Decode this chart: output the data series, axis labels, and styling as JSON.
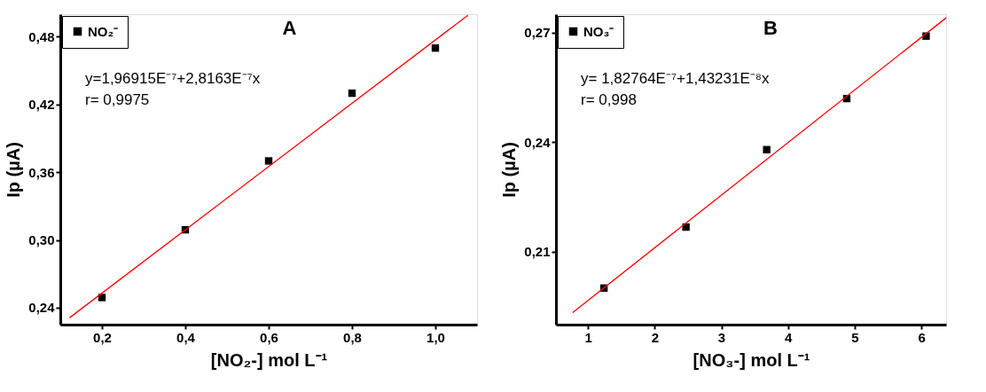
{
  "chart_data": [
    {
      "type": "scatter",
      "title": "A",
      "xlabel": "[NO₂-] mol L⁻¹",
      "ylabel": "Ip (µA)",
      "series": [
        {
          "name": "NO₂⁻",
          "marker": "square",
          "color": "#000000",
          "x": [
            0.2,
            0.4,
            0.6,
            0.8,
            1.0
          ],
          "values": [
            0.249,
            0.309,
            0.37,
            0.43,
            0.47
          ]
        },
        {
          "type": "line",
          "marker": "none",
          "line_style": "solid",
          "color": "#ff0000",
          "x": [
            0.122,
            1.078
          ],
          "values": [
            0.231,
            0.499
          ]
        }
      ],
      "xlim": [
        0.1,
        1.1
      ],
      "ylim": [
        0.225,
        0.5
      ],
      "xticks": [
        {
          "value": 0.2,
          "label": "0,2"
        },
        {
          "value": 0.4,
          "label": "0,4"
        },
        {
          "value": 0.6,
          "label": "0,6"
        },
        {
          "value": 0.8,
          "label": "0,8"
        },
        {
          "value": 1.0,
          "label": "1,0"
        }
      ],
      "yticks": [
        {
          "value": 0.24,
          "label": "0,24"
        },
        {
          "value": 0.3,
          "label": "0,30"
        },
        {
          "value": 0.36,
          "label": "0,36"
        },
        {
          "value": 0.42,
          "label": "0,42"
        },
        {
          "value": 0.48,
          "label": "0,48"
        }
      ],
      "annotations": [
        "y=1,96915E⁻⁷+2,8163E⁻⁷x",
        "r= 0,9975"
      ],
      "grid": false,
      "legend": "top left"
    },
    {
      "type": "scatter",
      "title": "B",
      "xlabel": "[NO₃-] mol L⁻¹",
      "ylabel": "Ip (µA)",
      "series": [
        {
          "name": "NO₃⁻",
          "marker": "square",
          "color": "#000000",
          "x": [
            1.24,
            2.47,
            3.68,
            4.88,
            6.07
          ],
          "values": [
            0.2,
            0.2167,
            0.2379,
            0.2519,
            0.269
          ]
        },
        {
          "type": "line",
          "marker": "none",
          "line_style": "solid",
          "color": "#ff0000",
          "x": [
            0.77,
            6.37
          ],
          "values": [
            0.1933,
            0.274
          ]
        }
      ],
      "xlim": [
        0.52,
        6.37
      ],
      "ylim": [
        0.19,
        0.275
      ],
      "xticks": [
        1,
        2,
        3,
        4,
        5,
        6
      ],
      "yticks": [
        {
          "value": 0.21,
          "label": "0,21"
        },
        {
          "value": 0.24,
          "label": "0,24"
        },
        {
          "value": 0.27,
          "label": "0,27"
        }
      ],
      "annotations": [
        "y= 1,82764E⁻⁷+1,43231E⁻⁸x",
        "r= 0,998"
      ],
      "grid": false,
      "legend": "top left"
    }
  ]
}
